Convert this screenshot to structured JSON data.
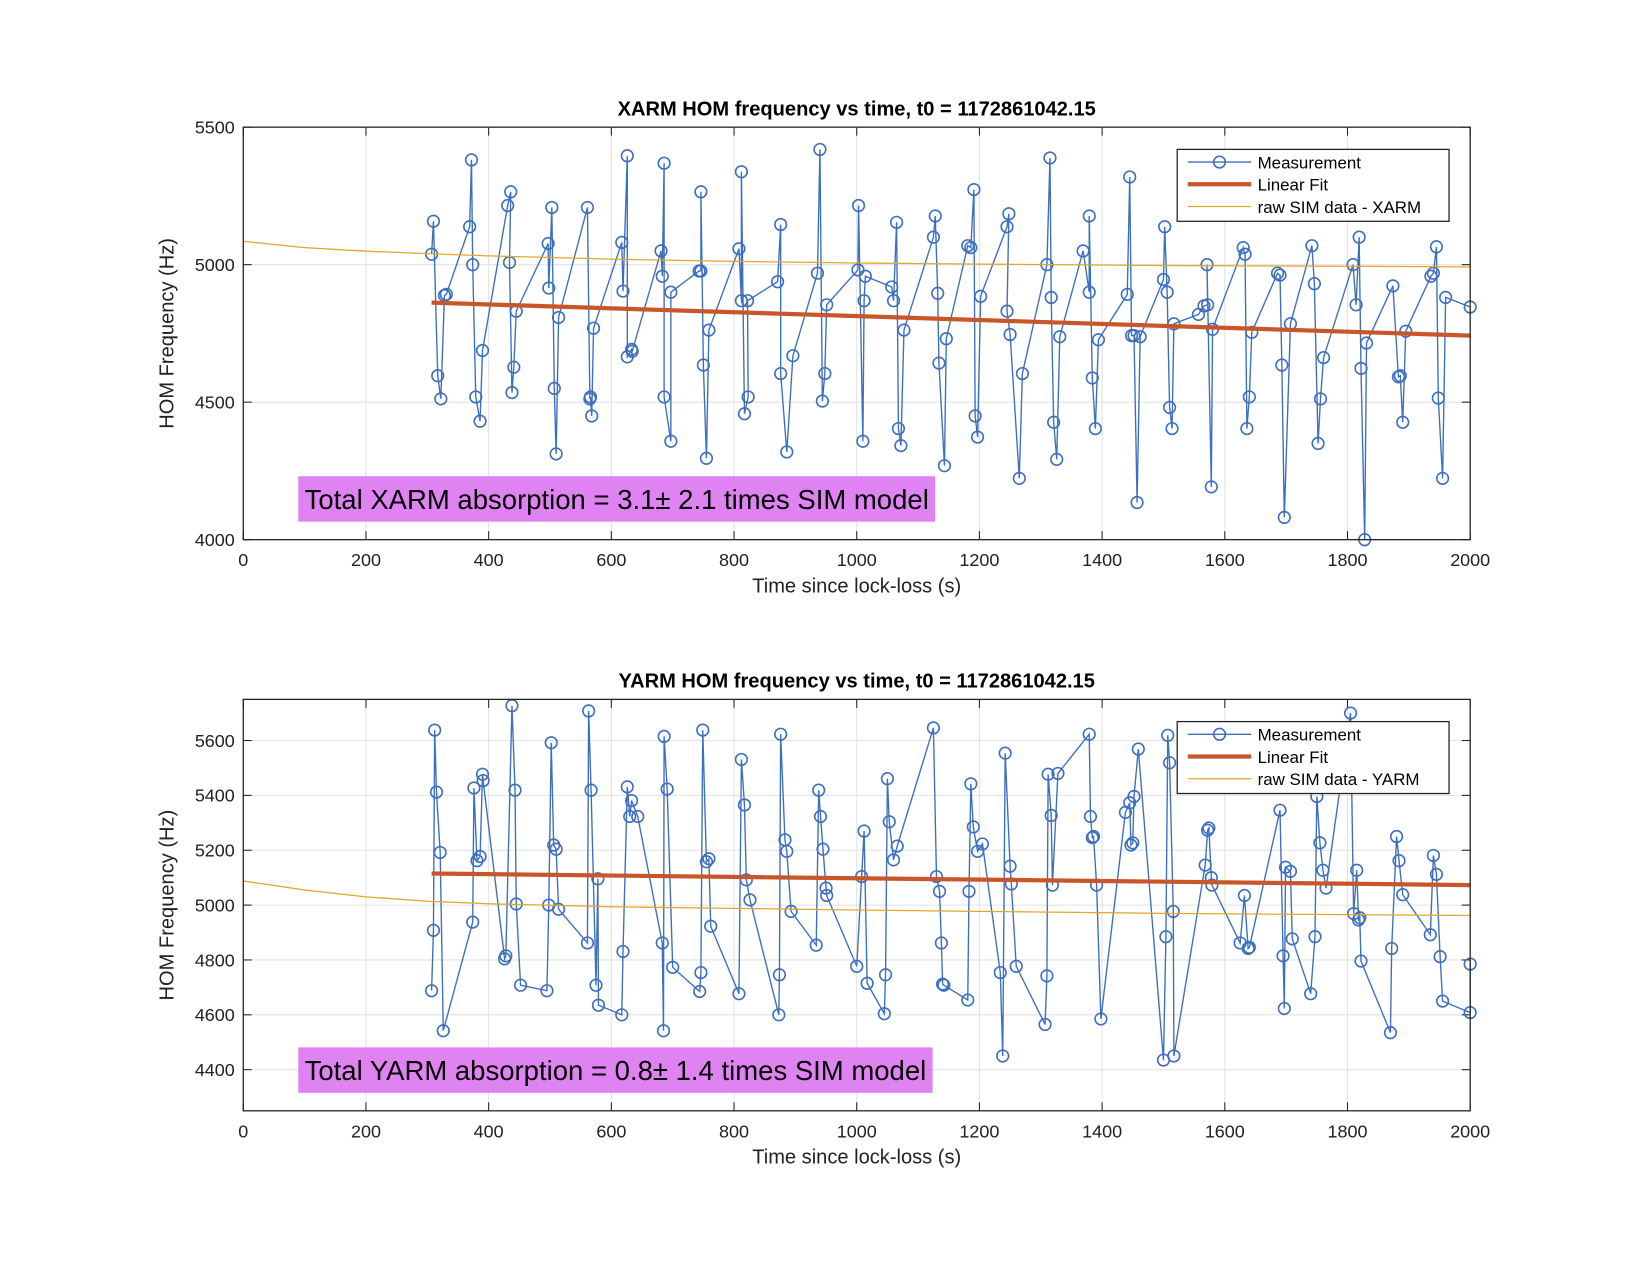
{
  "chart_data": [
    {
      "type": "line",
      "title": "XARM HOM frequency vs time, t0 = 1172861042.15",
      "xlabel": "Time since lock-loss (s)",
      "ylabel": "HOM Frequency (Hz)",
      "annotation": "Total XARM absorption = 3.1± 2.1 times SIM model",
      "xlim": [
        0,
        2000
      ],
      "xticks": [
        0,
        200,
        400,
        600,
        800,
        1000,
        1200,
        1400,
        1600,
        1800,
        2000
      ],
      "ylim": [
        4000,
        5500
      ],
      "yticks": [
        4000,
        4500,
        5000,
        5500
      ],
      "grid": true,
      "legend": "upper right",
      "series": [
        {
          "name": "Measurement",
          "color": "#3d6fbf",
          "marker": "o",
          "x": [
            307,
            310,
            317,
            322,
            328,
            331,
            369,
            372,
            374,
            379,
            386,
            390,
            431,
            436,
            434,
            438,
            441,
            445,
            497,
            498,
            503,
            507,
            510,
            514,
            561,
            565,
            566,
            568,
            571,
            617,
            619,
            626,
            626,
            633,
            634,
            681,
            683,
            686,
            686,
            697,
            697,
            743,
            746,
            746,
            750,
            755,
            759,
            808,
            812,
            812,
            817,
            823,
            822,
            871,
            876,
            876,
            886,
            896,
            936,
            940,
            944,
            948,
            951,
            1002,
            1003,
            1010,
            1012,
            1014,
            1057,
            1060,
            1065,
            1068,
            1072,
            1077,
            1125,
            1128,
            1132,
            1134,
            1143,
            1146,
            1181,
            1186,
            1191,
            1193,
            1197,
            1202,
            1245,
            1248,
            1245,
            1250,
            1265,
            1270,
            1310,
            1315,
            1317,
            1321,
            1326,
            1331,
            1369,
            1379,
            1379,
            1384,
            1389,
            1394,
            1441,
            1445,
            1448,
            1452,
            1457,
            1462,
            1500,
            1502,
            1506,
            1510,
            1514,
            1517,
            1557,
            1566,
            1572,
            1571,
            1578,
            1580,
            1630,
            1633,
            1636,
            1640,
            1644,
            1686,
            1690,
            1693,
            1697,
            1707,
            1742,
            1746,
            1752,
            1756,
            1761,
            1809,
            1814,
            1819,
            1822,
            1828,
            1831,
            1874,
            1883,
            1886,
            1890,
            1895,
            1936,
            1940,
            1945,
            1948,
            1955,
            1960,
            2000
          ],
          "values": [
            5038,
            5158,
            4596,
            4512,
            4888,
            4892,
            5138,
            5381,
            5000,
            4519,
            4431,
            4688,
            5215,
            5265,
            5008,
            4535,
            4627,
            4831,
            5077,
            4915,
            5208,
            4550,
            4312,
            4808,
            5208,
            4512,
            4519,
            4450,
            4769,
            5081,
            4904,
            5396,
            4665,
            4692,
            4685,
            5050,
            4958,
            5369,
            4519,
            4358,
            4900,
            4977,
            4977,
            5265,
            4635,
            4296,
            4762,
            5058,
            4869,
            5338,
            4458,
            4519,
            4869,
            4938,
            5146,
            4604,
            4319,
            4669,
            4969,
            5419,
            4504,
            4604,
            4854,
            4981,
            5215,
            4358,
            4869,
            4958,
            4919,
            4869,
            5154,
            4404,
            4342,
            4762,
            5100,
            5177,
            4896,
            4642,
            4269,
            4731,
            5069,
            5062,
            5273,
            4450,
            4373,
            4885,
            5138,
            5185,
            4831,
            4746,
            4223,
            4604,
            5000,
            5388,
            4881,
            4427,
            4292,
            4738,
            5050,
            4900,
            5177,
            4588,
            4404,
            4727,
            4892,
            5319,
            4742,
            4742,
            4135,
            4738,
            4946,
            5138,
            4900,
            4481,
            4404,
            4785,
            4819,
            4850,
            4854,
            5000,
            4192,
            4765,
            5062,
            5038,
            4404,
            4519,
            4754,
            4969,
            4962,
            4635,
            4081,
            4785,
            5069,
            4931,
            4350,
            4512,
            4662,
            5000,
            4854,
            5100,
            4623,
            4000,
            4715,
            4923,
            4592,
            4596,
            4427,
            4758,
            4958,
            4969,
            5065,
            4515,
            4223,
            4881,
            4846
          ]
        },
        {
          "name": "Linear Fit",
          "color": "#c9552b",
          "x": [
            307,
            2000
          ],
          "values": [
            4862,
            4742
          ]
        },
        {
          "name": "raw SIM data - XARM",
          "color": "#e3a626",
          "x": [
            0,
            100,
            200,
            300,
            400,
            600,
            800,
            1000,
            1200,
            1500,
            2000
          ],
          "values": [
            5085,
            5062,
            5049,
            5040,
            5032,
            5020,
            5012,
            5006,
            5002,
            4997,
            4992
          ]
        }
      ]
    },
    {
      "type": "line",
      "title": "YARM HOM frequency vs time, t0 = 1172861042.15",
      "xlabel": "Time since lock-loss (s)",
      "ylabel": "HOM Frequency (Hz)",
      "annotation": "Total YARM absorption = 0.8± 1.4 times SIM model",
      "xlim": [
        0,
        2000
      ],
      "xticks": [
        0,
        200,
        400,
        600,
        800,
        1000,
        1200,
        1400,
        1600,
        1800,
        2000
      ],
      "ylim": [
        4250,
        5750
      ],
      "yticks": [
        4400,
        4600,
        4800,
        5000,
        5200,
        5400,
        5600
      ],
      "grid": true,
      "legend": "upper right",
      "series": [
        {
          "name": "Measurement",
          "color": "#3d6fbf",
          "marker": "o",
          "x": [
            307,
            310,
            312,
            315,
            321,
            326,
            374,
            376,
            381,
            386,
            390,
            391,
            426,
            428,
            438,
            443,
            445,
            452,
            495,
            498,
            502,
            506,
            510,
            514,
            561,
            563,
            567,
            575,
            578,
            579,
            617,
            619,
            626,
            630,
            633,
            643,
            683,
            685,
            686,
            691,
            700,
            744,
            746,
            749,
            755,
            759,
            762,
            808,
            812,
            817,
            820,
            826,
            873,
            874,
            876,
            883,
            886,
            893,
            934,
            938,
            941,
            945,
            950,
            951,
            1000,
            1008,
            1012,
            1017,
            1045,
            1047,
            1050,
            1053,
            1060,
            1066,
            1125,
            1130,
            1135,
            1138,
            1140,
            1142,
            1181,
            1183,
            1186,
            1190,
            1197,
            1205,
            1234,
            1238,
            1242,
            1250,
            1252,
            1260,
            1307,
            1310,
            1312,
            1317,
            1319,
            1328,
            1379,
            1381,
            1384,
            1386,
            1391,
            1398,
            1438,
            1445,
            1447,
            1450,
            1452,
            1459,
            1500,
            1504,
            1507,
            1510,
            1516,
            1517,
            1568,
            1572,
            1574,
            1578,
            1579,
            1625,
            1632,
            1638,
            1640,
            1690,
            1695,
            1697,
            1699,
            1707,
            1710,
            1740,
            1747,
            1750,
            1755,
            1760,
            1765,
            1805,
            1810,
            1815,
            1818,
            1820,
            1822,
            1870,
            1872,
            1880,
            1884,
            1890,
            1935,
            1940,
            1945,
            1951,
            1955,
            2000,
            2000
          ],
          "values": [
            4688,
            4908,
            5638,
            5412,
            5192,
            4542,
            4938,
            5427,
            5162,
            5177,
            5477,
            5454,
            4804,
            4815,
            5727,
            5419,
            5004,
            4708,
            4688,
            5000,
            5592,
            5219,
            5204,
            4985,
            4862,
            5708,
            5419,
            4708,
            5096,
            4635,
            4600,
            4831,
            5431,
            5323,
            5381,
            5323,
            4862,
            4542,
            5615,
            5423,
            4773,
            4685,
            4754,
            5638,
            5158,
            5169,
            4923,
            4677,
            5531,
            5365,
            5092,
            5019,
            4600,
            4746,
            5623,
            5238,
            5196,
            4977,
            4854,
            5419,
            5323,
            5204,
            5062,
            5035,
            4777,
            5104,
            5270,
            4715,
            4604,
            4746,
            5461,
            5304,
            5165,
            5215,
            5646,
            5104,
            5050,
            4862,
            4712,
            4708,
            4654,
            5050,
            5442,
            5285,
            5196,
            5223,
            4754,
            4450,
            5554,
            5142,
            5077,
            4777,
            4565,
            4742,
            5477,
            5327,
            5073,
            5480,
            5623,
            5323,
            5246,
            5250,
            5073,
            4585,
            5338,
            5373,
            5219,
            5227,
            5396,
            5569,
            4435,
            4885,
            5619,
            5519,
            4977,
            4450,
            5146,
            5273,
            5281,
            5100,
            5073,
            4862,
            5035,
            4842,
            4846,
            5346,
            4815,
            4623,
            5138,
            5123,
            4877,
            4677,
            4885,
            5396,
            5227,
            5127,
            5062,
            5700,
            4969,
            5127,
            4946,
            4954,
            4796,
            4535,
            4842,
            5250,
            5162,
            5038,
            4892,
            5181,
            5112,
            4812,
            4650,
            4608,
            4785
          ]
        },
        {
          "name": "Linear Fit",
          "color": "#c9552b",
          "x": [
            307,
            2000
          ],
          "values": [
            5115,
            5073
          ]
        },
        {
          "name": "raw SIM data - YARM",
          "color": "#e3a626",
          "x": [
            0,
            100,
            200,
            300,
            400,
            600,
            800,
            1000,
            1200,
            1500,
            2000
          ],
          "values": [
            5088,
            5055,
            5030,
            5014,
            5005,
            4994,
            4988,
            4982,
            4977,
            4970,
            4962
          ]
        }
      ]
    }
  ]
}
